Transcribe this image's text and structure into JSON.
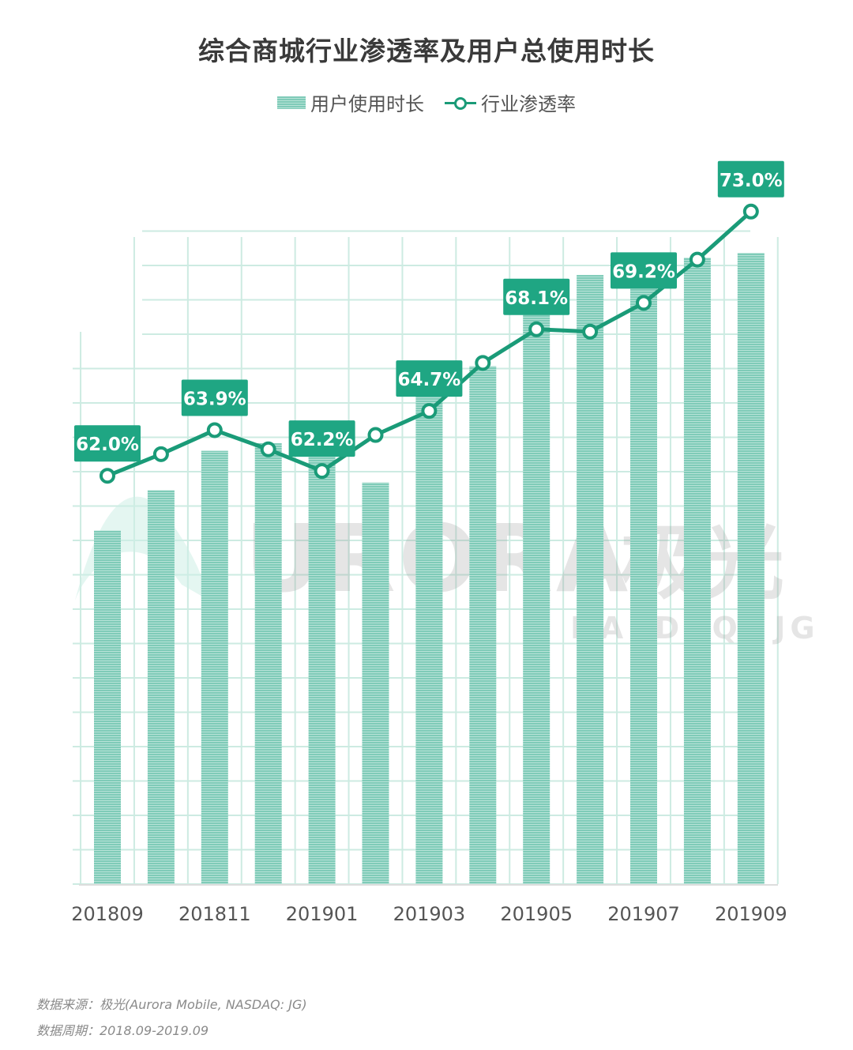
{
  "chart_data": {
    "type": "bar",
    "title": "综合商城行业渗透率及用户总使用时长",
    "x_labels": [
      "201809",
      "201811",
      "201901",
      "201903",
      "201905",
      "201907",
      "201909"
    ],
    "categories": [
      "201809",
      "201810",
      "201811",
      "201812",
      "201901",
      "201902",
      "201903",
      "201904",
      "201905",
      "201906",
      "201907",
      "201908",
      "201909"
    ],
    "series": [
      {
        "name": "用户使用时长",
        "type": "bar",
        "values": [
          368,
          410,
          451,
          459,
          481,
          418,
          544,
          539,
          599,
          634,
          636,
          652,
          657
        ]
      },
      {
        "name": "行业渗透率",
        "type": "line",
        "values": [
          62.0,
          62.9,
          63.9,
          63.1,
          62.2,
          63.7,
          64.7,
          66.7,
          68.1,
          68.0,
          69.2,
          71.0,
          73.0
        ]
      }
    ],
    "labels": [
      {
        "index": 0,
        "text": "62.0%"
      },
      {
        "index": 2,
        "text": "63.9%"
      },
      {
        "index": 4,
        "text": "62.2%"
      },
      {
        "index": 6,
        "text": "64.7%"
      },
      {
        "index": 8,
        "text": "68.1%"
      },
      {
        "index": 10,
        "text": "69.2%"
      },
      {
        "index": 12,
        "text": "73.0%"
      }
    ],
    "bar_ylim": [
      0,
      750
    ],
    "line_ylim": [
      45,
      75
    ],
    "legend_position": "top-center",
    "grid": true
  },
  "watermark": {
    "text": "URORA",
    "cn_text": "极光",
    "sub_text": "NASDAQ: JG"
  },
  "footnotes": {
    "source": "数据来源：极光(Aurora Mobile, NASDAQ: JG)",
    "period": "数据周期：2018.09-2019.09"
  },
  "colors": {
    "bar": "#7fcbb8",
    "bar_stripe": "#b8e3d8",
    "line": "#1a9b78",
    "label_bg": "#1fa683",
    "grid": "#cdebe2"
  }
}
